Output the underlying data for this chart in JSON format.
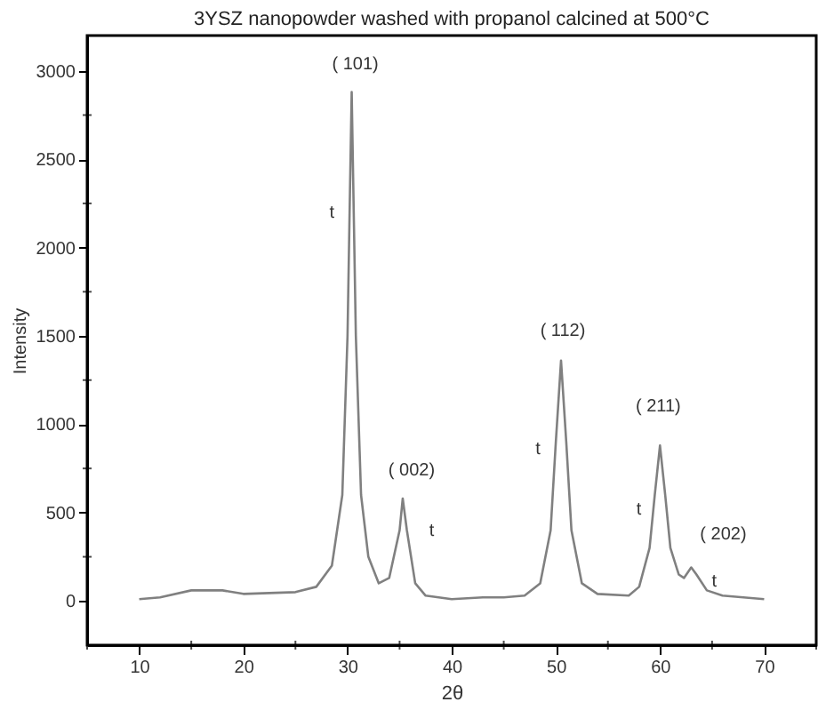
{
  "chart_data": {
    "type": "line",
    "title": "3YSZ nanopowder washed with propanol calcined at 500°C",
    "xlabel": "2θ",
    "ylabel": "Intensity",
    "x": [
      10,
      12,
      15,
      18,
      20,
      25,
      27,
      28.5,
      29.5,
      30,
      30.2,
      30.4,
      30.8,
      31.3,
      32,
      33,
      34,
      35,
      35.3,
      35.7,
      36.5,
      37.5,
      40,
      43,
      45,
      47,
      48.5,
      49.5,
      50,
      50.5,
      51,
      51.5,
      52.5,
      54,
      57,
      58,
      59,
      59.5,
      60,
      60.5,
      61,
      61.8,
      62.3,
      63,
      63.5,
      64.5,
      66,
      70
    ],
    "series": [
      {
        "color": "#808080",
        "values": [
          10,
          20,
          60,
          60,
          40,
          50,
          80,
          200,
          600,
          1500,
          2200,
          2880,
          1500,
          600,
          250,
          100,
          130,
          400,
          580,
          400,
          100,
          30,
          10,
          20,
          20,
          30,
          100,
          400,
          900,
          1360,
          900,
          400,
          100,
          40,
          30,
          80,
          300,
          600,
          880,
          600,
          300,
          150,
          130,
          190,
          150,
          60,
          30,
          10
        ]
      }
    ],
    "xlim": [
      5,
      75
    ],
    "xticks": [
      {
        "value": 5,
        "label": null
      },
      10,
      {
        "value": 15,
        "label": null
      },
      20,
      {
        "value": 25,
        "label": null
      },
      30,
      {
        "value": 35,
        "label": null
      },
      40,
      {
        "value": 45,
        "label": null
      },
      50,
      {
        "value": 55,
        "label": null
      },
      60,
      {
        "value": 65,
        "label": null
      },
      70,
      {
        "value": 75,
        "label": null
      }
    ],
    "ylim": [
      -250,
      3200
    ],
    "yticks": [
      0,
      {
        "value": 250,
        "label": null
      },
      500,
      {
        "value": 750,
        "label": null
      },
      1000,
      {
        "value": 1250,
        "label": null
      },
      1500,
      {
        "value": 1750,
        "label": null
      },
      2000,
      {
        "value": 2250,
        "label": null
      },
      2500,
      {
        "value": 2750,
        "label": null
      },
      3000
    ],
    "grid": false,
    "marker": "none",
    "line_style": "solid",
    "annotations": [
      {
        "text": "( 101)",
        "x": 30.4,
        "y": 2880
      },
      {
        "text": "t",
        "x": 30.2,
        "y": 2200
      },
      {
        "text": "( 002)",
        "x": 35.3,
        "y": 580
      },
      {
        "text": "t",
        "x": 35.7,
        "y": 400
      },
      {
        "text": "( 112)",
        "x": 50.5,
        "y": 1360
      },
      {
        "text": "t",
        "x": 50,
        "y": 900
      },
      {
        "text": "( 211)",
        "x": 60,
        "y": 880
      },
      {
        "text": "t",
        "x": 59.5,
        "y": 600
      },
      {
        "text": "( 202)",
        "x": 63,
        "y": 190
      },
      {
        "text": "t",
        "x": 63.5,
        "y": 150
      }
    ]
  }
}
